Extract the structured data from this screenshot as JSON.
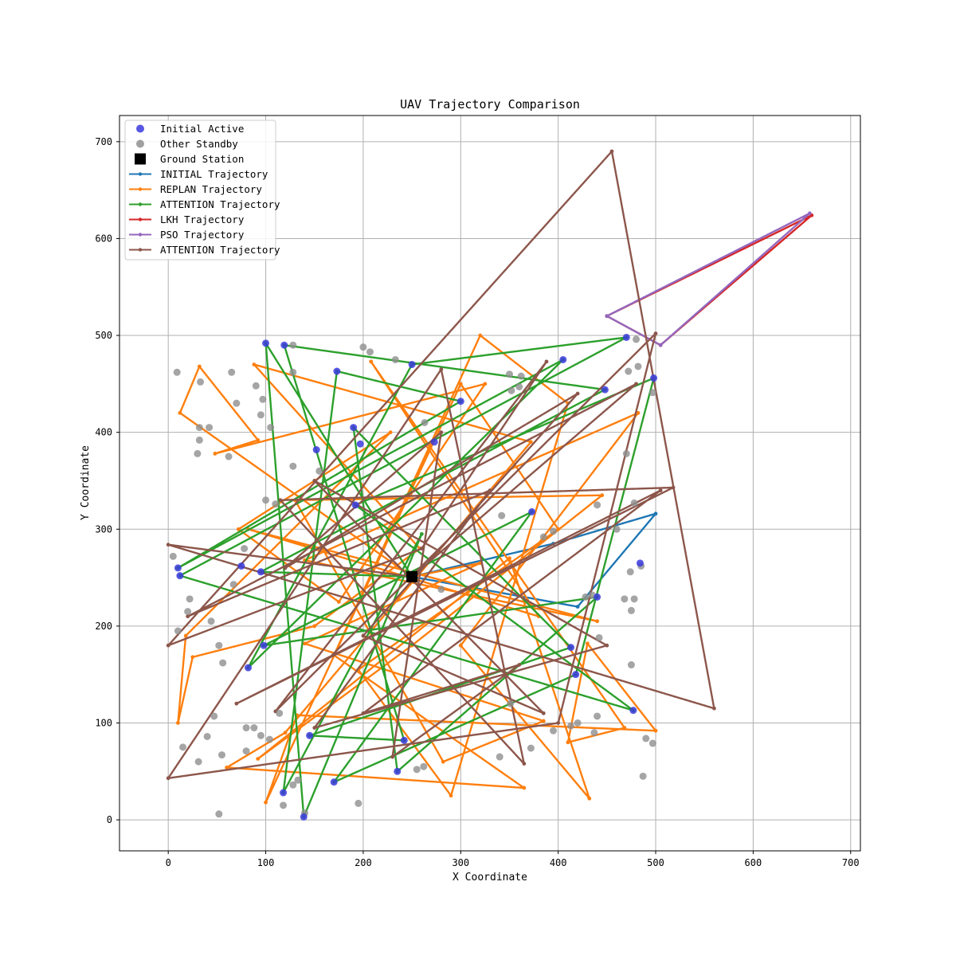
{
  "chart_data": {
    "type": "line",
    "title": "UAV Trajectory Comparison",
    "xlabel": "X Coordinate",
    "ylabel": "Y Coordinate",
    "xlim": [
      -50,
      710
    ],
    "ylim": [
      -32,
      727
    ],
    "xticks": [
      0,
      100,
      200,
      300,
      400,
      500,
      600,
      700
    ],
    "yticks": [
      0,
      100,
      200,
      300,
      400,
      500,
      600,
      700
    ],
    "grid": true,
    "legend_position": "upper-left",
    "legend": [
      {
        "label": "Initial Active",
        "kind": "scatter",
        "color": "#3b3bdd"
      },
      {
        "label": "Other Standby",
        "kind": "scatter",
        "color": "#8f8f8f"
      },
      {
        "label": "Ground Station",
        "kind": "square",
        "color": "#000000"
      },
      {
        "label": "INITIAL Trajectory",
        "kind": "line",
        "color": "#1f77b4"
      },
      {
        "label": "REPLAN Trajectory",
        "kind": "line",
        "color": "#ff7f0e"
      },
      {
        "label": "ATTENTION Trajectory",
        "kind": "line",
        "color": "#2ca02c"
      },
      {
        "label": "LKH Trajectory",
        "kind": "line",
        "color": "#d62728"
      },
      {
        "label": "PSO Trajectory",
        "kind": "line",
        "color": "#9467bd"
      },
      {
        "label": "ATTENTION Trajectory",
        "kind": "line",
        "color": "#8c564b"
      }
    ],
    "ground_station": {
      "x": 250,
      "y": 251
    },
    "initial_active": [
      [
        100,
        492
      ],
      [
        119,
        490
      ],
      [
        173,
        463
      ],
      [
        250,
        470
      ],
      [
        300,
        432
      ],
      [
        405,
        475
      ],
      [
        448,
        444
      ],
      [
        470,
        498
      ],
      [
        498,
        456
      ],
      [
        190,
        405
      ],
      [
        197,
        388
      ],
      [
        152,
        382
      ],
      [
        273,
        390
      ],
      [
        192,
        325
      ],
      [
        373,
        318
      ],
      [
        95,
        256
      ],
      [
        75,
        262
      ],
      [
        10,
        260
      ],
      [
        12,
        252
      ],
      [
        484,
        265
      ],
      [
        440,
        230
      ],
      [
        413,
        178
      ],
      [
        418,
        150
      ],
      [
        98,
        180
      ],
      [
        82,
        157
      ],
      [
        477,
        113
      ],
      [
        145,
        87
      ],
      [
        242,
        82
      ],
      [
        235,
        50
      ],
      [
        170,
        39
      ],
      [
        118,
        28
      ],
      [
        139,
        3
      ]
    ],
    "other_standby": [
      [
        9,
        462
      ],
      [
        33,
        452
      ],
      [
        65,
        462
      ],
      [
        90,
        448
      ],
      [
        128,
        462
      ],
      [
        128,
        490
      ],
      [
        200,
        488
      ],
      [
        207,
        483
      ],
      [
        233,
        475
      ],
      [
        350,
        460
      ],
      [
        362,
        458
      ],
      [
        352,
        443
      ],
      [
        360,
        447
      ],
      [
        472,
        463
      ],
      [
        482,
        468
      ],
      [
        480,
        496
      ],
      [
        497,
        441
      ],
      [
        70,
        430
      ],
      [
        97,
        434
      ],
      [
        95,
        418
      ],
      [
        105,
        405
      ],
      [
        32,
        405
      ],
      [
        42,
        405
      ],
      [
        32,
        392
      ],
      [
        30,
        378
      ],
      [
        62,
        375
      ],
      [
        470,
        378
      ],
      [
        128,
        365
      ],
      [
        155,
        360
      ],
      [
        100,
        330
      ],
      [
        110,
        326
      ],
      [
        263,
        410
      ],
      [
        342,
        314
      ],
      [
        395,
        298
      ],
      [
        460,
        300
      ],
      [
        478,
        327
      ],
      [
        440,
        325
      ],
      [
        385,
        292
      ],
      [
        78,
        280
      ],
      [
        5,
        272
      ],
      [
        67,
        243
      ],
      [
        22,
        228
      ],
      [
        20,
        215
      ],
      [
        44,
        205
      ],
      [
        52,
        180
      ],
      [
        10,
        195
      ],
      [
        280,
        238
      ],
      [
        428,
        230
      ],
      [
        435,
        232
      ],
      [
        468,
        228
      ],
      [
        478,
        228
      ],
      [
        475,
        216
      ],
      [
        474,
        256
      ],
      [
        485,
        262
      ],
      [
        442,
        188
      ],
      [
        475,
        160
      ],
      [
        56,
        162
      ],
      [
        114,
        110
      ],
      [
        47,
        107
      ],
      [
        80,
        95
      ],
      [
        88,
        95
      ],
      [
        95,
        87
      ],
      [
        40,
        86
      ],
      [
        80,
        71
      ],
      [
        104,
        83
      ],
      [
        15,
        75
      ],
      [
        31,
        60
      ],
      [
        55,
        67
      ],
      [
        395,
        92
      ],
      [
        420,
        100
      ],
      [
        413,
        97
      ],
      [
        440,
        107
      ],
      [
        437,
        90
      ],
      [
        490,
        84
      ],
      [
        497,
        79
      ],
      [
        487,
        45
      ],
      [
        262,
        55
      ],
      [
        255,
        52
      ],
      [
        351,
        120
      ],
      [
        372,
        74
      ],
      [
        340,
        65
      ],
      [
        133,
        41
      ],
      [
        128,
        36
      ],
      [
        118,
        15
      ],
      [
        140,
        7
      ],
      [
        52,
        6
      ],
      [
        195,
        17
      ]
    ],
    "series": [
      {
        "name": "INITIAL Trajectory",
        "color": "#1f77b4",
        "points": [
          [
            250,
            251
          ],
          [
            395,
            285
          ],
          [
            500,
            316
          ],
          [
            420,
            220
          ],
          [
            250,
            251
          ]
        ]
      },
      {
        "name": "REPLAN Trajectory",
        "color": "#ff7f0e",
        "points": [
          [
            250,
            251
          ],
          [
            12,
            420
          ],
          [
            32,
            468
          ],
          [
            92,
            392
          ],
          [
            48,
            378
          ],
          [
            325,
            450
          ],
          [
            175,
            225
          ],
          [
            72,
            300
          ],
          [
            228,
            400
          ],
          [
            18,
            190
          ],
          [
            10,
            100
          ],
          [
            25,
            168
          ],
          [
            150,
            200
          ],
          [
            258,
            280
          ],
          [
            88,
            470
          ],
          [
            372,
            390
          ],
          [
            120,
            90
          ],
          [
            60,
            54
          ],
          [
            365,
            33
          ],
          [
            170,
            170
          ],
          [
            320,
            500
          ],
          [
            410,
            430
          ],
          [
            290,
            25
          ],
          [
            195,
            155
          ],
          [
            400,
            300
          ],
          [
            300,
            450
          ],
          [
            100,
            18
          ],
          [
            132,
            108
          ],
          [
            500,
            92
          ],
          [
            430,
            182
          ],
          [
            410,
            80
          ],
          [
            468,
            95
          ],
          [
            208,
            473
          ],
          [
            380,
            210
          ],
          [
            82,
            300
          ],
          [
            440,
            205
          ],
          [
            140,
            268
          ],
          [
            482,
            420
          ],
          [
            300,
            180
          ],
          [
            432,
            22
          ],
          [
            350,
            270
          ],
          [
            92,
            63
          ],
          [
            250,
            180
          ],
          [
            445,
            335
          ],
          [
            130,
            330
          ],
          [
            282,
            60
          ],
          [
            385,
            102
          ],
          [
            140,
            182
          ],
          [
            320,
            265
          ],
          [
            250,
            251
          ]
        ]
      },
      {
        "name": "ATTENTION Trajectory",
        "color": "#2ca02c",
        "points": [
          [
            250,
            251
          ],
          [
            100,
            492
          ],
          [
            139,
            3
          ],
          [
            260,
            295
          ],
          [
            118,
            28
          ],
          [
            173,
            463
          ],
          [
            300,
            432
          ],
          [
            10,
            260
          ],
          [
            405,
            475
          ],
          [
            82,
            157
          ],
          [
            250,
            470
          ],
          [
            470,
            498
          ],
          [
            12,
            252
          ],
          [
            477,
            113
          ],
          [
            192,
            325
          ],
          [
            498,
            456
          ],
          [
            418,
            150
          ],
          [
            170,
            39
          ],
          [
            373,
            318
          ],
          [
            98,
            180
          ],
          [
            440,
            230
          ],
          [
            235,
            50
          ],
          [
            190,
            405
          ],
          [
            413,
            178
          ],
          [
            145,
            87
          ],
          [
            242,
            82
          ],
          [
            119,
            490
          ],
          [
            448,
            444
          ],
          [
            95,
            256
          ],
          [
            250,
            251
          ]
        ]
      },
      {
        "name": "LKH Trajectory",
        "color": "#d62728",
        "points": [
          [
            450,
            520
          ],
          [
            505,
            490
          ],
          [
            660,
            624
          ],
          [
            450,
            520
          ]
        ]
      },
      {
        "name": "PSO Trajectory",
        "color": "#9467bd",
        "points": [
          [
            450,
            520
          ],
          [
            658,
            626
          ],
          [
            505,
            490
          ],
          [
            450,
            520
          ]
        ]
      },
      {
        "name": "ATTENTION Trajectory",
        "color": "#8c564b",
        "points": [
          [
            250,
            251
          ],
          [
            0,
            284
          ],
          [
            560,
            115
          ],
          [
            455,
            690
          ],
          [
            0,
            180
          ],
          [
            260,
            280
          ],
          [
            388,
            473
          ],
          [
            110,
            112
          ],
          [
            500,
            502
          ],
          [
            400,
            100
          ],
          [
            0,
            43
          ],
          [
            280,
            465
          ],
          [
            365,
            58
          ],
          [
            115,
            330
          ],
          [
            518,
            343
          ],
          [
            70,
            120
          ],
          [
            505,
            340
          ],
          [
            200,
            110
          ],
          [
            360,
            160
          ],
          [
            230,
            65
          ],
          [
            280,
            400
          ],
          [
            120,
            260
          ],
          [
            420,
            440
          ],
          [
            200,
            190
          ],
          [
            385,
            110
          ],
          [
            150,
            350
          ],
          [
            450,
            180
          ],
          [
            150,
            95
          ],
          [
            330,
            340
          ],
          [
            20,
            210
          ],
          [
            480,
            450
          ],
          [
            250,
            251
          ]
        ]
      }
    ]
  }
}
